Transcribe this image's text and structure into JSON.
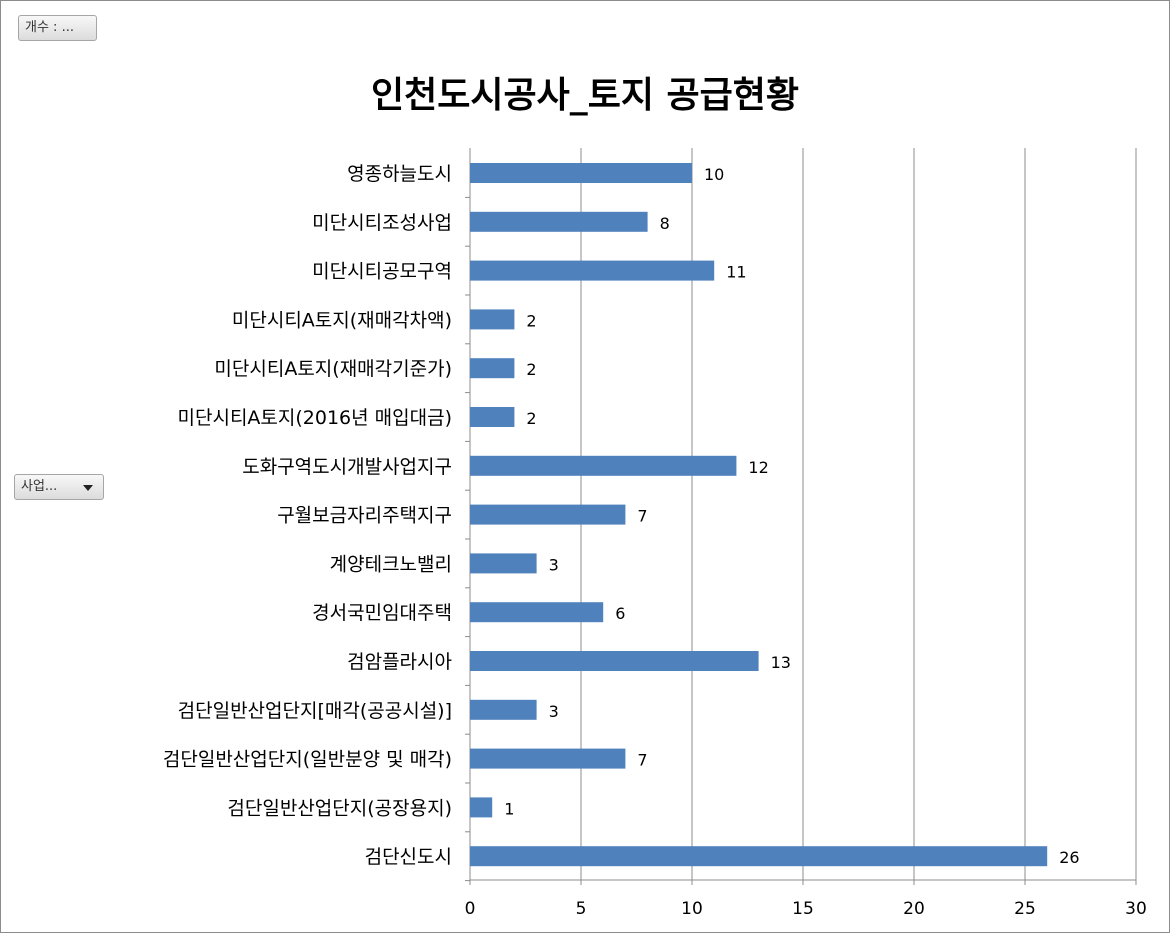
{
  "pivot": {
    "value_field_label": "개수 : ...",
    "axis_field_label": "사업..."
  },
  "chart_data": {
    "type": "bar",
    "orientation": "horizontal",
    "title": "인천도시공사_토지 공급현황",
    "categories": [
      "영종하늘도시",
      "미단시티조성사업",
      "미단시티공모구역",
      "미단시티A토지(재매각차액)",
      "미단시티A토지(재매각기준가)",
      "미단시티A토지(2016년 매입대금)",
      "도화구역도시개발사업지구",
      "구월보금자리주택지구",
      "계양테크노밸리",
      "경서국민임대주택",
      "검암플라시아",
      "검단일반산업단지[매각(공공시설)]",
      "검단일반산업단지(일반분양 및 매각)",
      "검단일반산업단지(공장용지)",
      "검단신도시"
    ],
    "values": [
      10,
      8,
      11,
      2,
      2,
      2,
      12,
      7,
      3,
      6,
      13,
      3,
      7,
      1,
      26
    ],
    "xlim": [
      0,
      30
    ],
    "xticks": [
      0,
      5,
      10,
      15,
      20,
      25,
      30
    ],
    "grid": "vertical",
    "bar_color": "#4f81bd",
    "data_labels": true
  }
}
